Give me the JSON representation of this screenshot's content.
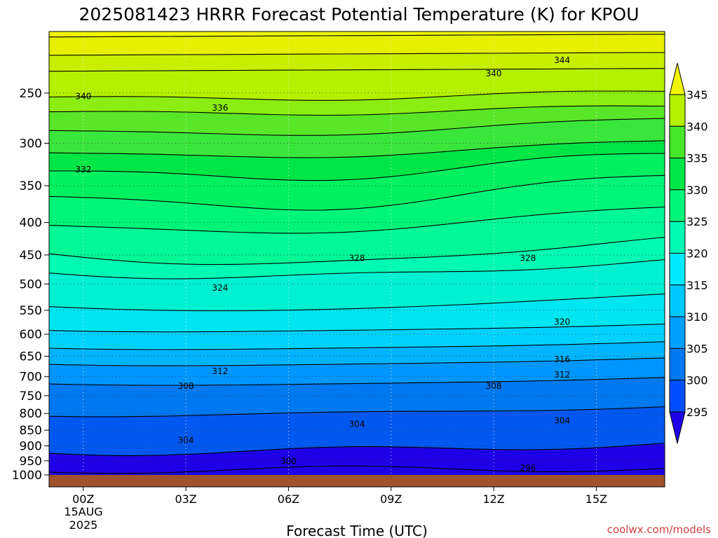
{
  "chart_data": {
    "type": "contour",
    "title": "2025081423 HRRR Forecast Potential Temperature (K) for KPOU",
    "xlabel": "Forecast Time (UTC)",
    "x_ticks": [
      "00Z",
      "03Z",
      "06Z",
      "09Z",
      "12Z",
      "15Z"
    ],
    "x_date_label": [
      "15AUG",
      "2025"
    ],
    "x_range_hours": [
      -1,
      17
    ],
    "y_scale": "log-pressure (hPa), inverted",
    "y_ticks": [
      250,
      300,
      350,
      400,
      450,
      500,
      550,
      600,
      650,
      700,
      750,
      800,
      850,
      900,
      950,
      1000
    ],
    "y_range": [
      200,
      1000
    ],
    "colorbar": {
      "levels": [
        295,
        300,
        305,
        310,
        315,
        320,
        325,
        330,
        335,
        340,
        345
      ],
      "colors": [
        "#1e00e6",
        "#0050ff",
        "#0078f0",
        "#00a0ff",
        "#00c8ff",
        "#00ebff",
        "#00fab4",
        "#00f578",
        "#00e646",
        "#46e628",
        "#b4f000",
        "#f0f500"
      ]
    },
    "contour_labels": [
      {
        "value": 344,
        "time": 14.0,
        "pressure": 222
      },
      {
        "value": 340,
        "time": 12.0,
        "pressure": 233
      },
      {
        "value": 340,
        "time": 0.0,
        "pressure": 253
      },
      {
        "value": 336,
        "time": 4.0,
        "pressure": 264
      },
      {
        "value": 332,
        "time": 0.0,
        "pressure": 330
      },
      {
        "value": 328,
        "time": 8.0,
        "pressure": 455
      },
      {
        "value": 328,
        "time": 13.0,
        "pressure": 455
      },
      {
        "value": 324,
        "time": 4.0,
        "pressure": 507
      },
      {
        "value": 320,
        "time": 14.0,
        "pressure": 574
      },
      {
        "value": 316,
        "time": 14.0,
        "pressure": 657
      },
      {
        "value": 312,
        "time": 4.0,
        "pressure": 686
      },
      {
        "value": 312,
        "time": 14.0,
        "pressure": 695
      },
      {
        "value": 308,
        "time": 3.0,
        "pressure": 724
      },
      {
        "value": 308,
        "time": 12.0,
        "pressure": 724
      },
      {
        "value": 304,
        "time": 8.0,
        "pressure": 832
      },
      {
        "value": 304,
        "time": 14.0,
        "pressure": 821
      },
      {
        "value": 304,
        "time": 3.0,
        "pressure": 882
      },
      {
        "value": 300,
        "time": 6.0,
        "pressure": 952
      },
      {
        "value": 296,
        "time": 13.0,
        "pressure": 975
      }
    ],
    "isotherm_pressures_at_start": [
      204,
      218,
      231,
      253,
      267,
      285,
      309,
      330,
      362,
      402,
      448,
      478,
      540,
      589,
      628,
      666,
      715,
      800,
      915,
      985
    ],
    "ground": "below 1000 hPa"
  },
  "credit": "coolwx.com/models"
}
